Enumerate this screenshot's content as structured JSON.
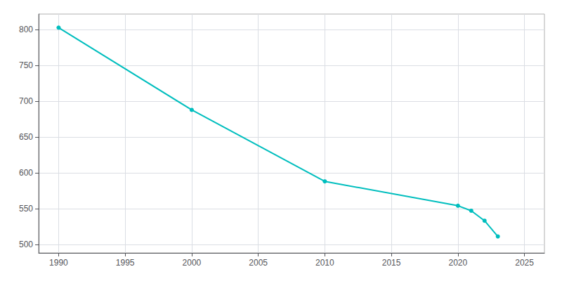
{
  "chart_data": {
    "type": "line",
    "x": [
      1990,
      2000,
      2010,
      2020,
      2021,
      2022,
      2023
    ],
    "values": [
      803,
      688,
      588,
      554,
      547,
      533,
      511
    ],
    "color": "#00BEBE",
    "marker": "circle",
    "xlim": [
      1988.5,
      2026.5
    ],
    "ylim": [
      488,
      822
    ],
    "xticks": [
      1990,
      1995,
      2000,
      2005,
      2010,
      2015,
      2020,
      2025
    ],
    "yticks": [
      500,
      550,
      600,
      650,
      700,
      750,
      800
    ],
    "grid": true
  }
}
